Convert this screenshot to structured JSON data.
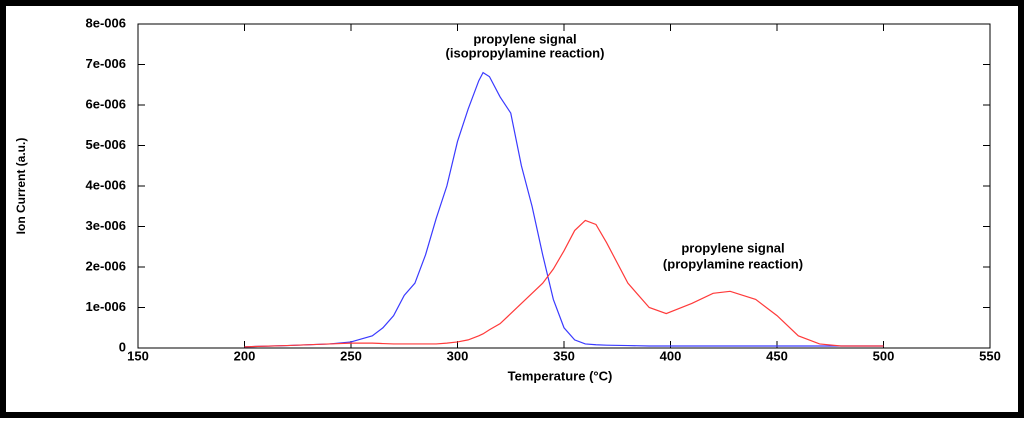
{
  "chart_data": {
    "type": "line",
    "xlabel": "Temperature (°C)",
    "ylabel": "Ion Current (a.u.)",
    "annotations": [
      {
        "lines": [
          "propylene signal",
          "(isopropylamine reaction)"
        ]
      },
      {
        "lines": [
          "propylene signal",
          "(propylamine reaction)"
        ]
      }
    ],
    "x": [
      200,
      220,
      240,
      250,
      260,
      265,
      270,
      275,
      280,
      285,
      290,
      295,
      300,
      305,
      310,
      312,
      315,
      320,
      325,
      330,
      335,
      340,
      345,
      350,
      355,
      360,
      365,
      370,
      380,
      390,
      398,
      410,
      420,
      428,
      440,
      450,
      460,
      470,
      480,
      500
    ],
    "series": [
      {
        "color": "#3a3aff",
        "values": [
          3e-08,
          6e-08,
          1e-07,
          1.5e-07,
          3e-07,
          5e-07,
          8e-07,
          1.3e-06,
          1.6e-06,
          2.3e-06,
          3.2e-06,
          4e-06,
          5.1e-06,
          5.9e-06,
          6.6e-06,
          6.8e-06,
          6.7e-06,
          6.2e-06,
          5.8e-06,
          4.5e-06,
          3.5e-06,
          2.3e-06,
          1.2e-06,
          5e-07,
          2e-07,
          1e-07,
          8e-08,
          7e-08,
          6e-08,
          5e-08,
          5e-08,
          5e-08,
          5e-08,
          5e-08,
          5e-08,
          5e-08,
          5e-08,
          5e-08,
          5e-08,
          5e-08
        ]
      },
      {
        "color": "#ff3a3a",
        "values": [
          3e-08,
          6e-08,
          1e-07,
          1.2e-07,
          1.2e-07,
          1.1e-07,
          1e-07,
          1e-07,
          1e-07,
          1e-07,
          1e-07,
          1.2e-07,
          1.5e-07,
          2e-07,
          3e-07,
          3.5e-07,
          4.5e-07,
          6e-07,
          8.5e-07,
          1.1e-06,
          1.35e-06,
          1.6e-06,
          1.95e-06,
          2.4e-06,
          2.9e-06,
          3.15e-06,
          3.05e-06,
          2.6e-06,
          1.6e-06,
          1e-06,
          8.5e-07,
          1.1e-06,
          1.35e-06,
          1.4e-06,
          1.2e-06,
          8e-07,
          3e-07,
          1e-07,
          5e-08,
          5e-08
        ]
      }
    ],
    "xlim": [
      150,
      550
    ],
    "xticks": [
      150,
      200,
      250,
      300,
      350,
      400,
      450,
      500,
      550
    ],
    "ylim": [
      0,
      8e-06
    ],
    "yticks": [
      0,
      {
        "value": 1e-06,
        "label": "1e-006"
      },
      {
        "value": 2e-06,
        "label": "2e-006"
      },
      {
        "value": 3e-06,
        "label": "3e-006"
      },
      {
        "value": 4e-06,
        "label": "4e-006"
      },
      {
        "value": 5e-06,
        "label": "5e-006"
      },
      {
        "value": 6e-06,
        "label": "6e-006"
      },
      {
        "value": 7e-06,
        "label": "7e-006"
      },
      {
        "value": 8e-06,
        "label": "8e-006"
      }
    ]
  }
}
